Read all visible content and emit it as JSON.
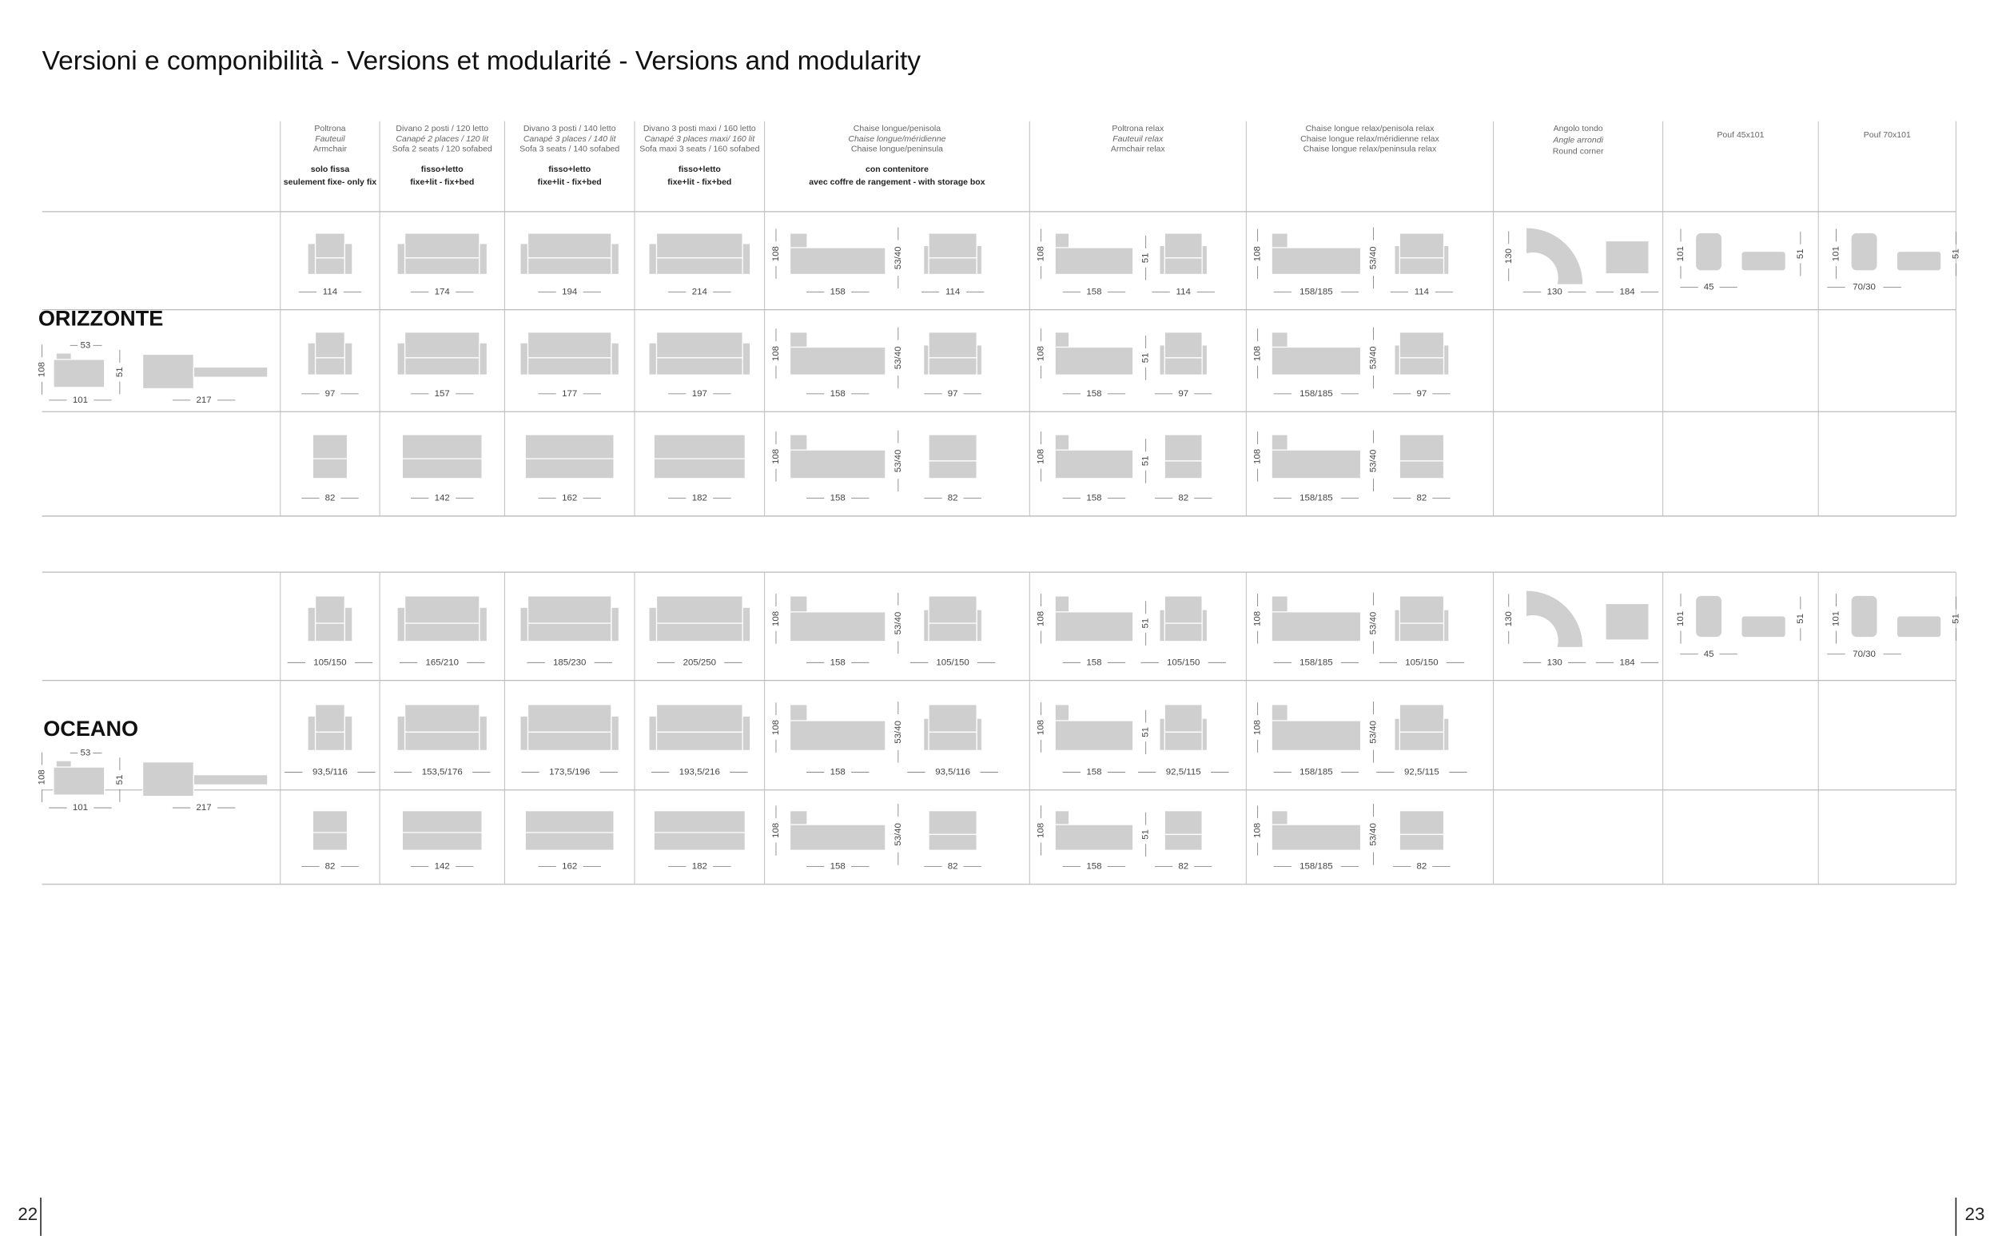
{
  "title": "Versioni e componibilità - Versions et modularité - Versions and modularity",
  "columns": [
    {
      "lines": [
        "Poltrona",
        "Fauteuil",
        "Armchair"
      ],
      "bold": [
        "solo fissa",
        "seulement fixe- only fix"
      ]
    },
    {
      "lines": [
        "Divano 2 posti / 120 letto",
        "Canapé 2 places / 120 lit",
        "Sofa 2 seats / 120 sofabed"
      ],
      "bold": [
        "fisso+letto",
        "fixe+lit - fix+bed"
      ]
    },
    {
      "lines": [
        "Divano 3 posti / 140 letto",
        "Canapé 3 places / 140 lit",
        "Sofa 3 seats / 140 sofabed"
      ],
      "bold": [
        "fisso+letto",
        "fixe+lit - fix+bed"
      ]
    },
    {
      "lines": [
        "Divano 3 posti maxi / 160 letto",
        "Canapé 3 places maxi/ 160 lit",
        "Sofa maxi 3 seats / 160 sofabed"
      ],
      "bold": [
        "fisso+letto",
        "fixe+lit - fix+bed"
      ]
    },
    {
      "lines": [
        "Chaise longue/penisola",
        "Chaise longue/méridienne",
        "Chaise longue/peninsula"
      ],
      "bold": [
        "con contenitore",
        "avec coffre de rangement - with storage box"
      ]
    },
    {
      "lines": [
        "Poltrona relax",
        "Fauteuil relax",
        "Armchair relax"
      ],
      "bold": []
    },
    {
      "lines": [
        "Chaise longue relax/penisola relax",
        "Chaise longue relax/méridienne relax",
        "Chaise longue relax/peninsula relax"
      ],
      "bold": []
    },
    {
      "lines": [
        "Angolo tondo",
        "Angle arrondi",
        "Round corner"
      ],
      "bold": []
    },
    {
      "lines": [
        "Pouf 45x101"
      ],
      "bold": []
    },
    {
      "lines": [
        "Pouf 70x101"
      ],
      "bold": []
    }
  ],
  "sections": [
    {
      "name": "ORIZZONTE",
      "side": [
        "53",
        "108",
        "51",
        "101",
        "217"
      ],
      "rows": [
        [
          [
            "114"
          ],
          [
            "174"
          ],
          [
            "194"
          ],
          [
            "214"
          ],
          [
            "108",
            "53/40",
            "158",
            "114"
          ],
          [
            "108",
            "51",
            "158",
            "114"
          ],
          [
            "108",
            "53/40",
            "158/185",
            "114"
          ],
          [
            "130",
            "130",
            "184"
          ],
          [
            "101",
            "51",
            "45"
          ],
          [
            "101",
            "51",
            "70/30"
          ]
        ],
        [
          [
            "97"
          ],
          [
            "157"
          ],
          [
            "177"
          ],
          [
            "197"
          ],
          [
            "108",
            "53/40",
            "158",
            "97"
          ],
          [
            "108",
            "51",
            "158",
            "97"
          ],
          [
            "108",
            "53/40",
            "158/185",
            "97"
          ]
        ],
        [
          [
            "82"
          ],
          [
            "142"
          ],
          [
            "162"
          ],
          [
            "182"
          ],
          [
            "108",
            "53/40",
            "158",
            "82"
          ],
          [
            "108",
            "51",
            "158",
            "82"
          ],
          [
            "108",
            "53/40",
            "158/185",
            "82"
          ]
        ]
      ]
    },
    {
      "name": "OCEANO",
      "side": [
        "53",
        "108",
        "51",
        "101",
        "217"
      ],
      "rows": [
        [
          [
            "105/150"
          ],
          [
            "165/210"
          ],
          [
            "185/230"
          ],
          [
            "205/250"
          ],
          [
            "108",
            "53/40",
            "158",
            "105/150"
          ],
          [
            "108",
            "51",
            "158",
            "105/150"
          ],
          [
            "108",
            "53/40",
            "158/185",
            "105/150"
          ],
          [
            "130",
            "130",
            "184"
          ],
          [
            "101",
            "51",
            "45"
          ],
          [
            "101",
            "51",
            "70/30"
          ]
        ],
        [
          [
            "93,5/116"
          ],
          [
            "153,5/176"
          ],
          [
            "173,5/196"
          ],
          [
            "193,5/216"
          ],
          [
            "108",
            "53/40",
            "158",
            "93,5/116"
          ],
          [
            "108",
            "51",
            "158",
            "92,5/115"
          ],
          [
            "108",
            "53/40",
            "158/185",
            "92,5/115"
          ]
        ],
        [
          [
            "82"
          ],
          [
            "142"
          ],
          [
            "162"
          ],
          [
            "182"
          ],
          [
            "108",
            "53/40",
            "158",
            "82"
          ],
          [
            "108",
            "51",
            "158",
            "82"
          ],
          [
            "108",
            "53/40",
            "158/185",
            "82"
          ]
        ]
      ]
    }
  ],
  "pages": [
    "22",
    "23"
  ]
}
